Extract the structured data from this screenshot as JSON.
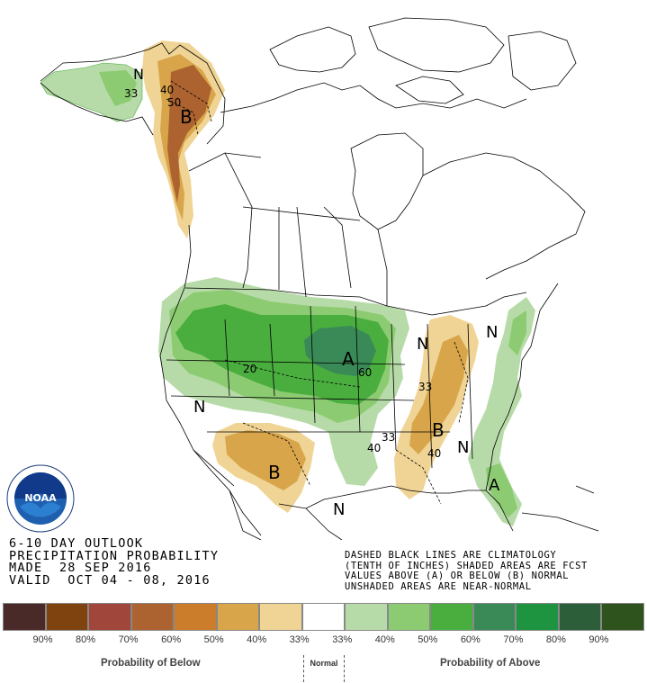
{
  "title": {
    "line1": "6-10 DAY OUTLOOK",
    "line2": "PRECIPITATION PROBABILITY",
    "line3": "MADE  28 SEP 2016",
    "line4": "VALID  OCT 04 - 08, 2016"
  },
  "notes": {
    "line1": "DASHED BLACK LINES ARE CLIMATOLOGY",
    "line2": "(TENTH OF INCHES) SHADED AREAS ARE FCST",
    "line3": "VALUES ABOVE (A) OR BELOW (B) NORMAL",
    "line4": "UNSHADED AREAS ARE NEAR-NORMAL"
  },
  "logo": {
    "text": "NOAA"
  },
  "legend": {
    "colors": [
      "#4a2a28",
      "#7f4310",
      "#a0463a",
      "#ad6330",
      "#cc7d2c",
      "#d8a54a",
      "#f0d495",
      "#ffffff",
      "#b7dba8",
      "#8ccb72",
      "#4aae3f",
      "#3a8a58",
      "#1e9340",
      "#2d5e3a",
      "#2e531c"
    ],
    "ticks": [
      "90%",
      "80%",
      "70%",
      "60%",
      "50%",
      "40%",
      "33%",
      "33%",
      "40%",
      "50%",
      "60%",
      "70%",
      "80%",
      "90%"
    ],
    "below_label": "Probability of Below",
    "normal_label": "Normal",
    "above_label": "Probability of Above"
  },
  "map_labels": {
    "alaska_n": "N",
    "alaska_33": "33",
    "alaska_40": "40",
    "alaska_50": "50",
    "alaska_b": "B",
    "west_n": "N",
    "west_20": "20",
    "plains_a": "A",
    "plains_60": "60",
    "sw_b": "B",
    "texas_n": "N",
    "mid_33": "33",
    "mid_40": "40",
    "east_n1": "N",
    "east_n2": "N",
    "east_n3": "N",
    "east_33": "33",
    "east_b": "B",
    "east_40": "40",
    "florida_a": "A"
  }
}
